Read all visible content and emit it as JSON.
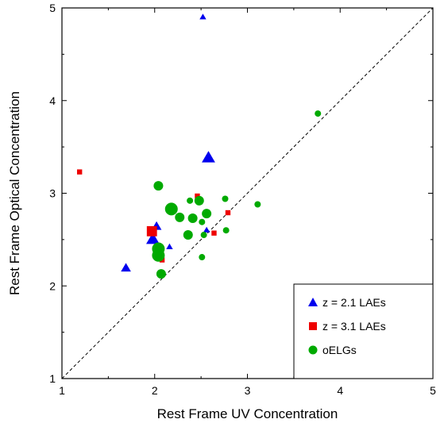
{
  "chart_data": {
    "type": "scatter",
    "title": "",
    "xlabel": "Rest Frame UV Concentration",
    "ylabel": "Rest Frame Optical Concentration",
    "xlim": [
      1,
      5
    ],
    "ylim": [
      1,
      5
    ],
    "xticks": [
      "1",
      "2",
      "3",
      "4",
      "5"
    ],
    "yticks": [
      "1",
      "2",
      "3",
      "4",
      "5"
    ],
    "grid": false,
    "reference_line": {
      "style": "dashed",
      "from": [
        1,
        1
      ],
      "to": [
        5,
        5
      ]
    },
    "legend": {
      "position": "bottom-right"
    },
    "series": [
      {
        "name": "z = 2.1 LAEs",
        "marker": "triangle",
        "color": "#0000ee",
        "points": [
          {
            "x": 2.52,
            "y": 4.9,
            "size": "small"
          },
          {
            "x": 2.58,
            "y": 3.38,
            "size": "large"
          },
          {
            "x": 2.02,
            "y": 2.64,
            "size": "medium"
          },
          {
            "x": 1.98,
            "y": 2.5,
            "size": "large"
          },
          {
            "x": 2.16,
            "y": 2.42,
            "size": "small"
          },
          {
            "x": 1.69,
            "y": 2.19,
            "size": "medium"
          },
          {
            "x": 2.56,
            "y": 2.6,
            "size": "small"
          }
        ]
      },
      {
        "name": "z = 3.1 LAEs",
        "marker": "square",
        "color": "#ee0000",
        "points": [
          {
            "x": 1.19,
            "y": 3.23,
            "size": "small"
          },
          {
            "x": 2.46,
            "y": 2.97,
            "size": "small"
          },
          {
            "x": 1.97,
            "y": 2.59,
            "size": "large"
          },
          {
            "x": 2.79,
            "y": 2.79,
            "size": "small"
          },
          {
            "x": 2.64,
            "y": 2.57,
            "size": "small"
          },
          {
            "x": 2.08,
            "y": 2.28,
            "size": "small"
          }
        ]
      },
      {
        "name": "oELGs",
        "marker": "circle",
        "color": "#00aa00",
        "points": [
          {
            "x": 3.76,
            "y": 3.86,
            "size": "small"
          },
          {
            "x": 2.04,
            "y": 3.08,
            "size": "medium"
          },
          {
            "x": 2.76,
            "y": 2.94,
            "size": "small"
          },
          {
            "x": 2.38,
            "y": 2.92,
            "size": "small"
          },
          {
            "x": 2.48,
            "y": 2.92,
            "size": "medium"
          },
          {
            "x": 3.11,
            "y": 2.88,
            "size": "small"
          },
          {
            "x": 2.18,
            "y": 2.83,
            "size": "large"
          },
          {
            "x": 2.56,
            "y": 2.78,
            "size": "medium"
          },
          {
            "x": 2.27,
            "y": 2.74,
            "size": "medium"
          },
          {
            "x": 2.41,
            "y": 2.73,
            "size": "medium"
          },
          {
            "x": 2.51,
            "y": 2.69,
            "size": "small"
          },
          {
            "x": 2.77,
            "y": 2.6,
            "size": "small"
          },
          {
            "x": 2.36,
            "y": 2.55,
            "size": "medium"
          },
          {
            "x": 2.53,
            "y": 2.55,
            "size": "small"
          },
          {
            "x": 2.04,
            "y": 2.4,
            "size": "large"
          },
          {
            "x": 2.04,
            "y": 2.33,
            "size": "large"
          },
          {
            "x": 2.51,
            "y": 2.31,
            "size": "small"
          },
          {
            "x": 2.07,
            "y": 2.13,
            "size": "medium"
          }
        ]
      }
    ]
  }
}
